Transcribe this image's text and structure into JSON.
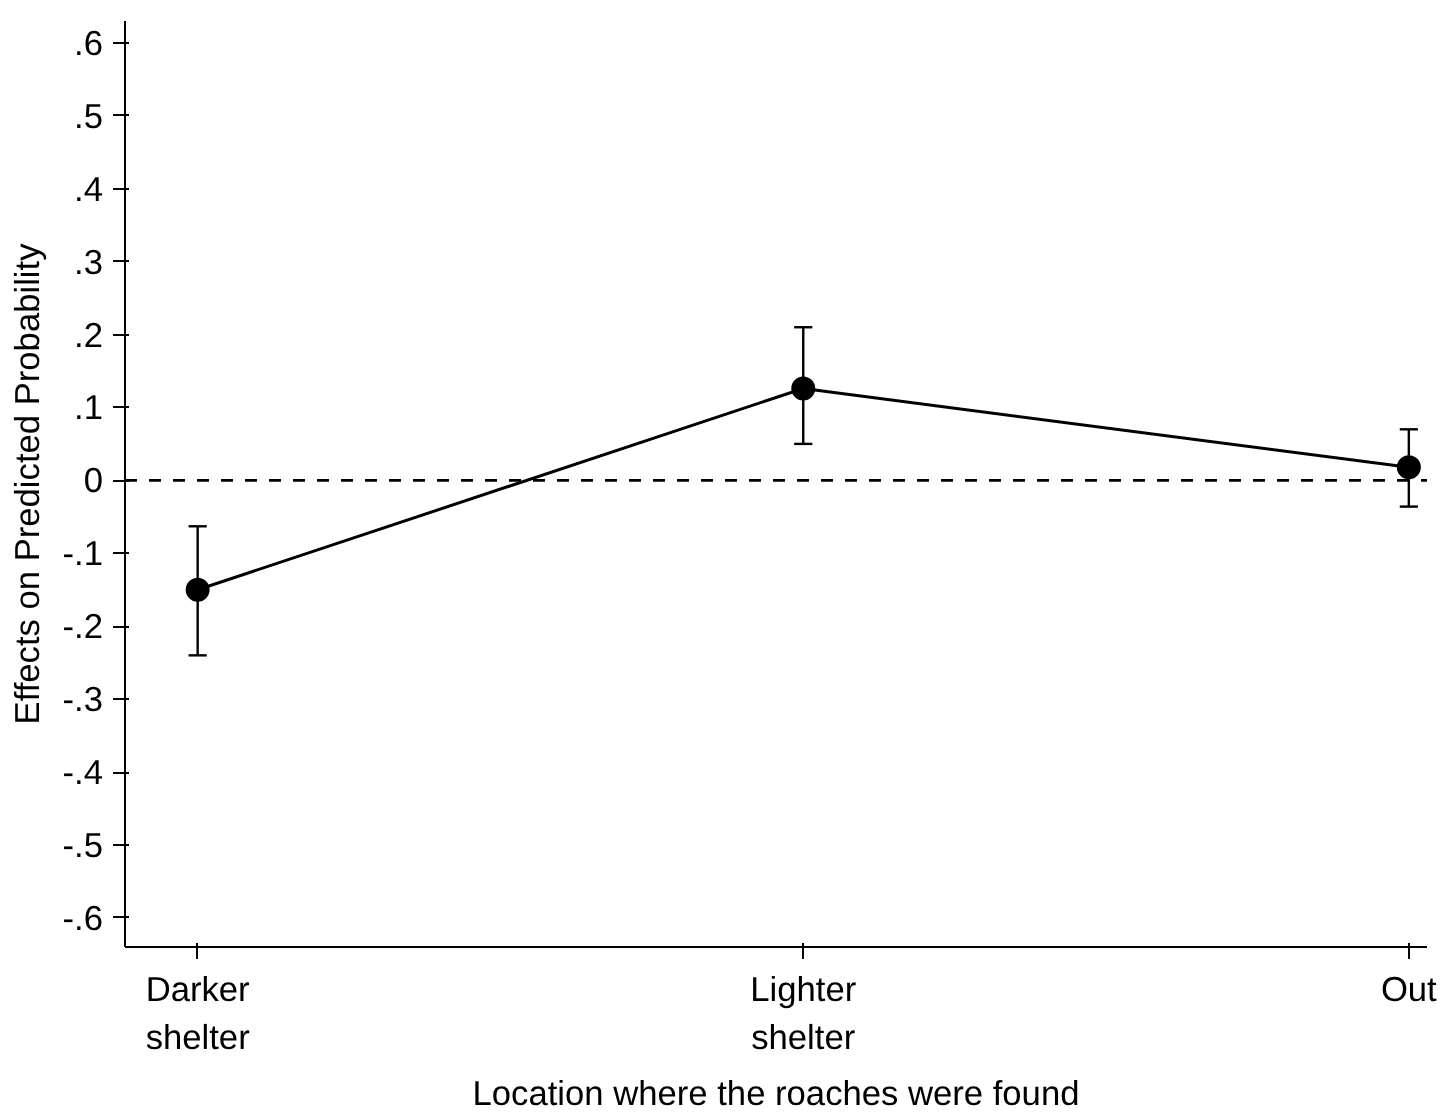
{
  "chart_data": {
    "type": "line",
    "xlabel": "Location where the roaches were found",
    "ylabel": "Effects on Predicted Probability",
    "categories": [
      "Darker\nshelter",
      "Lighter\nshelter",
      "Out"
    ],
    "series": [
      {
        "color": "#000000",
        "values": [
          -0.15,
          0.126,
          0.018
        ],
        "errors": [
          [
            -0.24,
            -0.063
          ],
          [
            0.05,
            0.21
          ],
          [
            -0.036,
            0.07
          ]
        ]
      }
    ],
    "ylim": [
      -0.64,
      0.63
    ],
    "yticks": [
      {
        "value": 0.6,
        "label": ".6"
      },
      {
        "value": 0.5,
        "label": ".5"
      },
      {
        "value": 0.4,
        "label": ".4"
      },
      {
        "value": 0.3,
        "label": ".3"
      },
      {
        "value": 0.2,
        "label": ".2"
      },
      {
        "value": 0.1,
        "label": ".1"
      },
      0,
      {
        "value": -0.1,
        "label": "-.1"
      },
      {
        "value": -0.2,
        "label": "-.2"
      },
      {
        "value": -0.3,
        "label": "-.3"
      },
      {
        "value": -0.4,
        "label": "-.4"
      },
      {
        "value": -0.5,
        "label": "-.5"
      },
      {
        "value": -0.6,
        "label": "-.6"
      }
    ],
    "ref_lines": [
      {
        "axis": "y",
        "value": 0,
        "color": "#000000",
        "line_style": "dashed"
      }
    ],
    "grid": false,
    "marker": "circle",
    "line_style": "solid"
  }
}
